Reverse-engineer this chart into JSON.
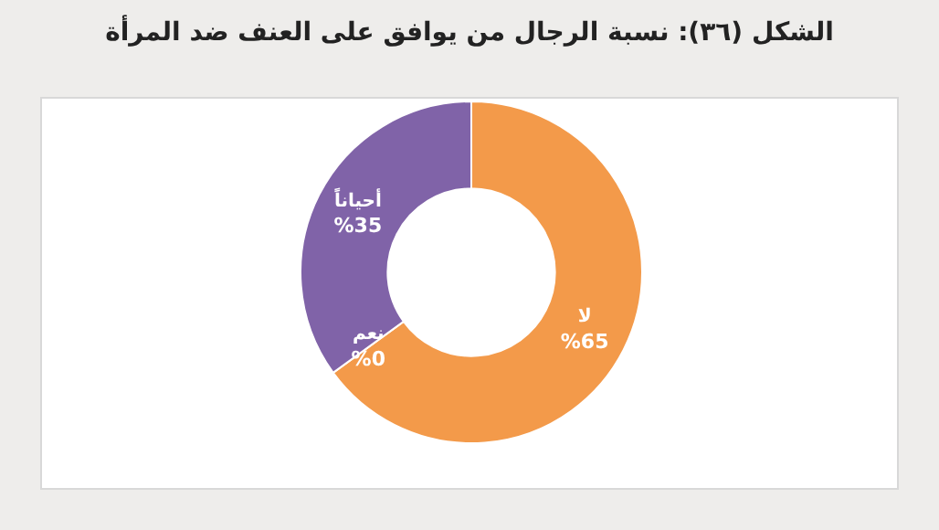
{
  "chart_data": {
    "type": "donut",
    "title": "الشكل (٣٦): نسبة الرجال من يوافق على العنف ضد المرأة",
    "categories": [
      "لا",
      "نعم",
      "أحياناً"
    ],
    "values": [
      65,
      0,
      35
    ],
    "colors": [
      "#f39a4a",
      "#4a9bb5",
      "#8063a8"
    ],
    "value_labels": [
      "%65",
      "%0",
      "%35"
    ],
    "legend": false
  }
}
